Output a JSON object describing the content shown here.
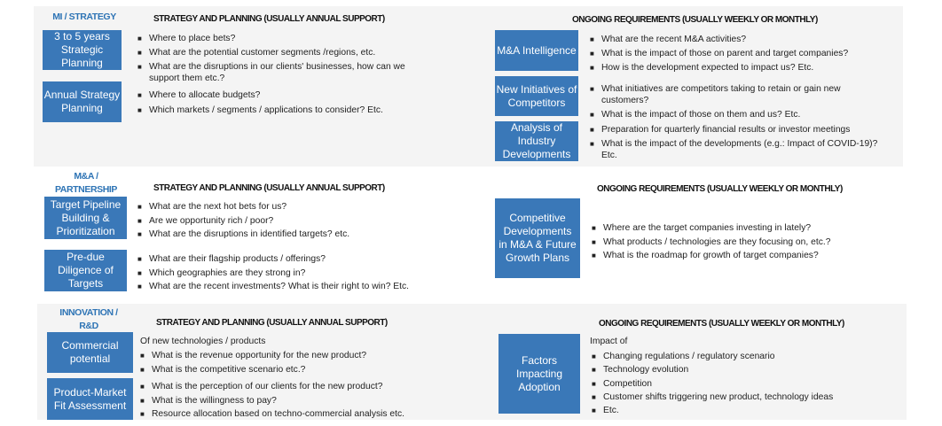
{
  "colors": {
    "box": "#3a78b8",
    "label": "#2e74b5",
    "panel": "#f4f4f4"
  },
  "sections": [
    {
      "label": "MI / STRATEGY",
      "left_header": "STRATEGY AND PLANNING (USUALLY ANNUAL SUPPORT)",
      "right_header": "ONGOING REQUIREMENTS (USUALLY WEEKLY OR MONTHLY)",
      "left": [
        {
          "box": "3 to 5 years Strategic Planning",
          "items": [
            "Where to place bets?",
            "What are the potential customer segments /regions, etc.",
            "What are the disruptions in our clients' businesses, how can we support them etc.?"
          ]
        },
        {
          "box": "Annual Strategy Planning",
          "items": [
            "Where to allocate budgets?",
            "Which markets / segments / applications to consider? Etc."
          ]
        }
      ],
      "right": [
        {
          "box": "M&A Intelligence",
          "items": [
            "What are the recent M&A activities?",
            "What is the impact of those on parent and target companies?",
            "How is the development expected to impact us? Etc."
          ]
        },
        {
          "box": "New Initiatives of Competitors",
          "items": [
            "What initiatives are competitors taking to retain or gain new customers?",
            "What is the impact of those on them and us? Etc."
          ]
        },
        {
          "box": "Analysis of Industry Developments",
          "items": [
            "Preparation for quarterly financial results or investor meetings",
            "What is the impact of the developments (e.g.: Impact of COVID-19)? Etc."
          ]
        }
      ]
    },
    {
      "label_line1": "M&A /",
      "label_line2": "PARTNERSHIP",
      "left_header": "STRATEGY AND PLANNING (USUALLY ANNUAL SUPPORT)",
      "right_header": "ONGOING REQUIREMENTS (USUALLY WEEKLY OR MONTHLY)",
      "left": [
        {
          "box": "Target Pipeline Building & Prioritization",
          "items": [
            "What are the next hot bets for us?",
            "Are we opportunity rich / poor?",
            "What are the disruptions in identified targets? etc."
          ]
        },
        {
          "box": "Pre-due Diligence of Targets",
          "items": [
            "What are their flagship products / offerings?",
            "Which geographies are they strong in?",
            "What are the recent investments? What is their right to win? Etc."
          ]
        }
      ],
      "right": [
        {
          "box": "Competitive Developments in M&A & Future Growth Plans",
          "items": [
            "Where are the target companies investing in lately?",
            "What products / technologies are they focusing on, etc.?",
            "What is the roadmap for growth of target companies?"
          ]
        }
      ]
    },
    {
      "label_line1": "INNOVATION /",
      "label_line2": "R&D",
      "left_header": "STRATEGY AND PLANNING (USUALLY ANNUAL SUPPORT)",
      "right_header": "ONGOING REQUIREMENTS (USUALLY WEEKLY OR MONTHLY)",
      "left_intro": "Of new technologies / products",
      "left": [
        {
          "box": "Commercial potential",
          "items": [
            "What is the revenue opportunity for the new product?",
            "What is the competitive scenario etc.?"
          ]
        },
        {
          "box": "Product-Market Fit Assessment",
          "items": [
            "What is the perception of our clients for the new product?",
            "What is the willingness to pay?",
            "Resource allocation based on techno-commercial analysis etc."
          ]
        }
      ],
      "right_intro": "Impact of",
      "right": [
        {
          "box": "Factors Impacting Adoption",
          "items": [
            "Changing regulations / regulatory scenario",
            "Technology evolution",
            "Competition",
            "Customer shifts triggering new product, technology ideas",
            "Etc."
          ]
        }
      ]
    }
  ]
}
